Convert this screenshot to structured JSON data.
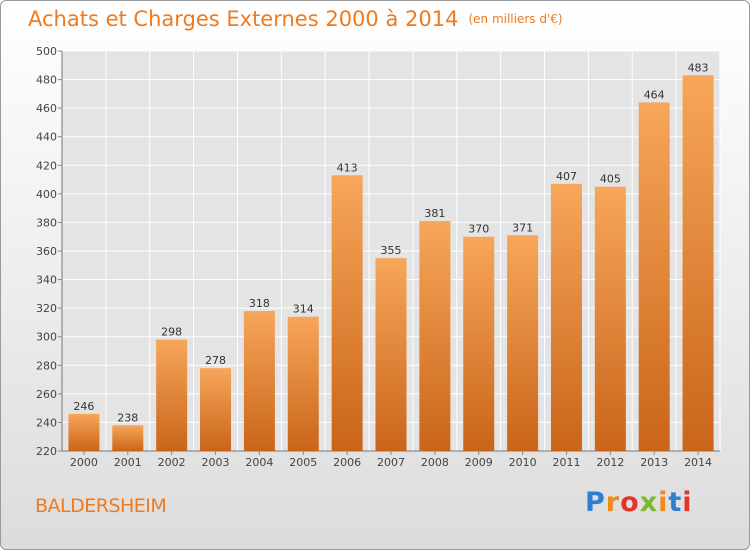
{
  "header": {
    "title": "Achats et Charges Externes 2000 à 2014",
    "unit": "(en milliers d'€)"
  },
  "footer": {
    "commune": "BALDERSHEIM",
    "brand": "Proxiti",
    "brand_colors": [
      "#2e7fd0",
      "#ef8a1c",
      "#e3352b",
      "#7cb82f",
      "#ef8a1c",
      "#2e7fd0",
      "#e3352b"
    ]
  },
  "colors": {
    "accent": "#f07a1d",
    "bar_light": "#f7a65a",
    "bar_dark": "#c9651a"
  },
  "chart_data": {
    "type": "bar",
    "title": "Achats et Charges Externes 2000 à 2014",
    "subtitle": "(en milliers d'€)",
    "xlabel": "",
    "ylabel": "",
    "categories": [
      "2000",
      "2001",
      "2002",
      "2003",
      "2004",
      "2005",
      "2006",
      "2007",
      "2008",
      "2009",
      "2010",
      "2011",
      "2012",
      "2013",
      "2014"
    ],
    "values": [
      246,
      238,
      298,
      278,
      318,
      314,
      413,
      355,
      381,
      370,
      371,
      407,
      405,
      464,
      483
    ],
    "ylim": [
      220,
      500
    ],
    "yticks": [
      220,
      240,
      260,
      280,
      300,
      320,
      340,
      360,
      380,
      400,
      420,
      440,
      460,
      480,
      500
    ],
    "grid": true,
    "legend": "none"
  }
}
